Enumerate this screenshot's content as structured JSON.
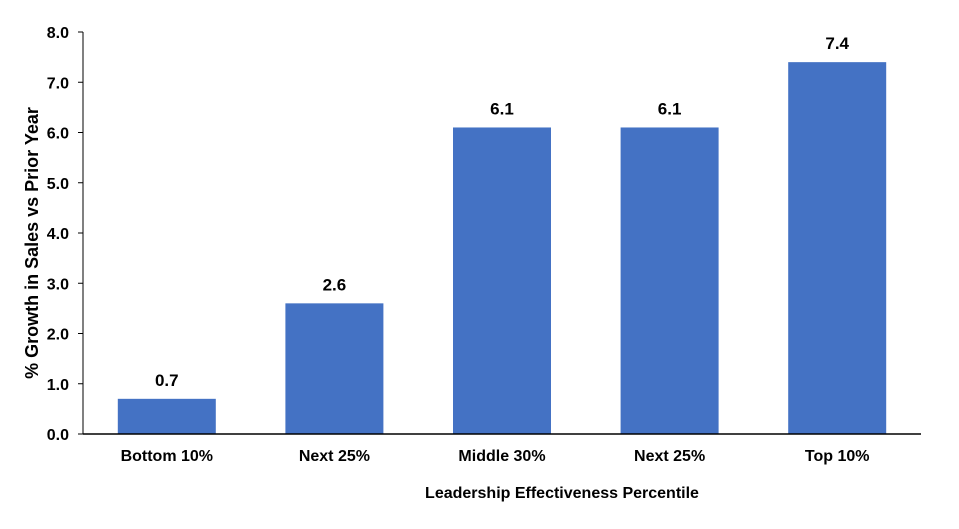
{
  "chart_data": {
    "type": "bar",
    "title": "",
    "categories": [
      "Bottom 10%",
      "Next 25%",
      "Middle 30%",
      "Next 25%",
      "Top 10%"
    ],
    "values": [
      0.7,
      2.6,
      6.1,
      6.1,
      7.4
    ],
    "data_labels": [
      "0.7",
      "2.6",
      "6.1",
      "6.1",
      "7.4"
    ],
    "xlabel": "Leadership Effectiveness Percentile",
    "ylabel": "% Growth in Sales vs Prior Year",
    "ylim": [
      0,
      8
    ],
    "yticks": [
      "0.0",
      "1.0",
      "2.0",
      "3.0",
      "4.0",
      "5.0",
      "6.0",
      "7.0",
      "8.0"
    ],
    "grid": false,
    "legend": "none",
    "bar_color": "#4472C4",
    "axis_color": "#000000"
  }
}
